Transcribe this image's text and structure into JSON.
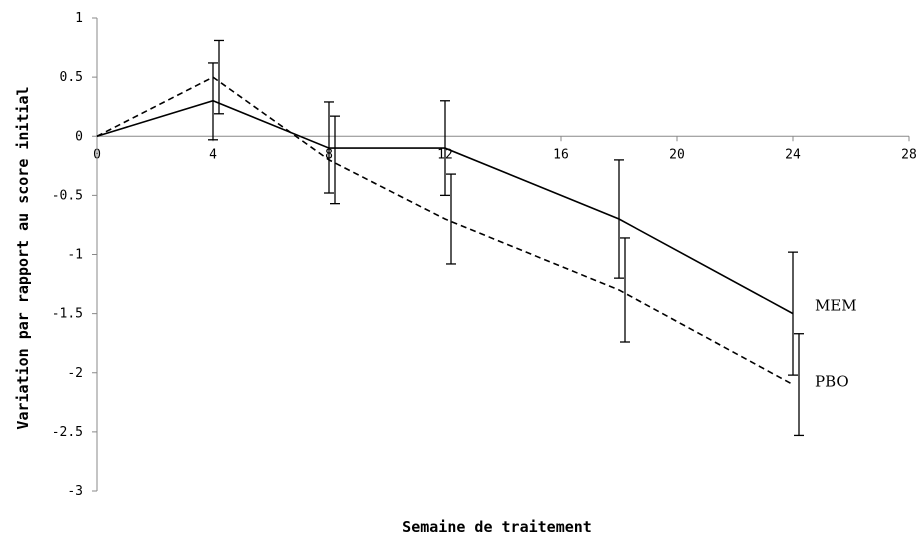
{
  "chart_data": {
    "type": "line",
    "xlabel": "Semaine de traitement",
    "ylabel": "Variation par rapport au score initial",
    "xlim": [
      0,
      28
    ],
    "ylim": [
      -3,
      1
    ],
    "x_ticks": [
      0,
      4,
      8,
      12,
      16,
      20,
      24,
      28
    ],
    "x_tick_labels": [
      "0",
      "4",
      "8",
      "12",
      "16",
      "20",
      "24",
      "28"
    ],
    "y_ticks": [
      1,
      0.5,
      0,
      -0.5,
      -1,
      -1.5,
      -2,
      -2.5,
      -3
    ],
    "y_tick_labels": [
      "1",
      "0.5",
      "0",
      "-0.5",
      "-1",
      "-1.5",
      "-2",
      "-2.5",
      "-3"
    ],
    "grid": false,
    "legend": "inline labels at line ends",
    "series": [
      {
        "name": "MEM",
        "style": "solid",
        "color": "#000000",
        "x": [
          0,
          4,
          8,
          12,
          18,
          24
        ],
        "y": [
          0,
          0.3,
          -0.1,
          -0.1,
          -0.7,
          -1.5
        ],
        "err_low": [
          null,
          -0.03,
          -0.48,
          -0.5,
          -1.2,
          -2.02
        ],
        "err_high": [
          null,
          0.62,
          0.29,
          0.3,
          -0.2,
          -0.98
        ]
      },
      {
        "name": "PBO",
        "style": "dashed",
        "color": "#000000",
        "x": [
          0,
          4,
          8,
          12,
          18,
          24
        ],
        "y": [
          0,
          0.5,
          -0.2,
          -0.7,
          -1.3,
          -2.1
        ],
        "err_low": [
          null,
          0.19,
          -0.57,
          -1.08,
          -1.74,
          -2.53
        ],
        "err_high": [
          null,
          0.81,
          0.17,
          -0.32,
          -0.86,
          -1.67
        ]
      }
    ]
  }
}
